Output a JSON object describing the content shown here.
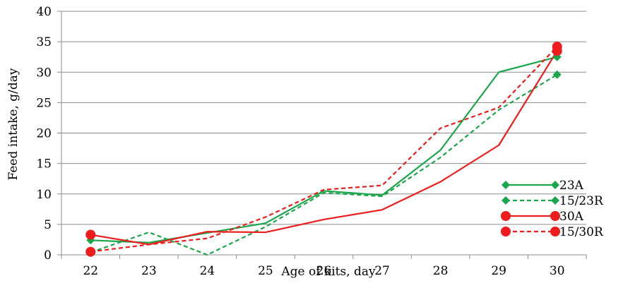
{
  "chart_data": {
    "type": "line",
    "title": "",
    "xlabel": "Age of kits, day",
    "ylabel": "Feed intake, g/day",
    "x": [
      22,
      23,
      24,
      25,
      26,
      27,
      28,
      29,
      30
    ],
    "x_tick_labels": [
      "22",
      "23",
      "24",
      "25",
      "26",
      "27",
      "28",
      "29",
      "30"
    ],
    "ylim": [
      0,
      40
    ],
    "y_ticks": [
      0,
      5,
      10,
      15,
      20,
      25,
      30,
      35,
      40
    ],
    "y_tick_labels": [
      "0",
      "5",
      "10",
      "15",
      "20",
      "25",
      "30",
      "35",
      "40"
    ],
    "grid": "horizontal",
    "legend_position": "bottom-right",
    "series": [
      {
        "name": "23A",
        "color": "#1aa64b",
        "dash": "solid",
        "marker": "diamond",
        "marker_points": [
          22,
          30
        ],
        "values": [
          2.4,
          2.0,
          3.6,
          5.2,
          10.5,
          9.8,
          17.2,
          30.0,
          32.5
        ]
      },
      {
        "name": "15/23R",
        "color": "#1aa64b",
        "dash": "dashed",
        "marker": "diamond",
        "marker_points": [
          22,
          30
        ],
        "values": [
          0.4,
          3.7,
          0.0,
          4.6,
          10.2,
          9.6,
          16.0,
          23.8,
          29.6
        ]
      },
      {
        "name": "30A",
        "color": "#ee1c1c",
        "dash": "solid",
        "marker": "circle",
        "marker_points": [
          22,
          30
        ],
        "values": [
          3.3,
          1.7,
          3.8,
          3.7,
          5.8,
          7.4,
          12.0,
          18.0,
          33.5
        ]
      },
      {
        "name": "15/30R",
        "color": "#ee1c1c",
        "dash": "dashed",
        "marker": "circle",
        "marker_points": [
          22,
          30
        ],
        "values": [
          0.5,
          1.7,
          2.7,
          6.2,
          10.7,
          11.4,
          20.8,
          24.2,
          34.2
        ]
      }
    ]
  }
}
